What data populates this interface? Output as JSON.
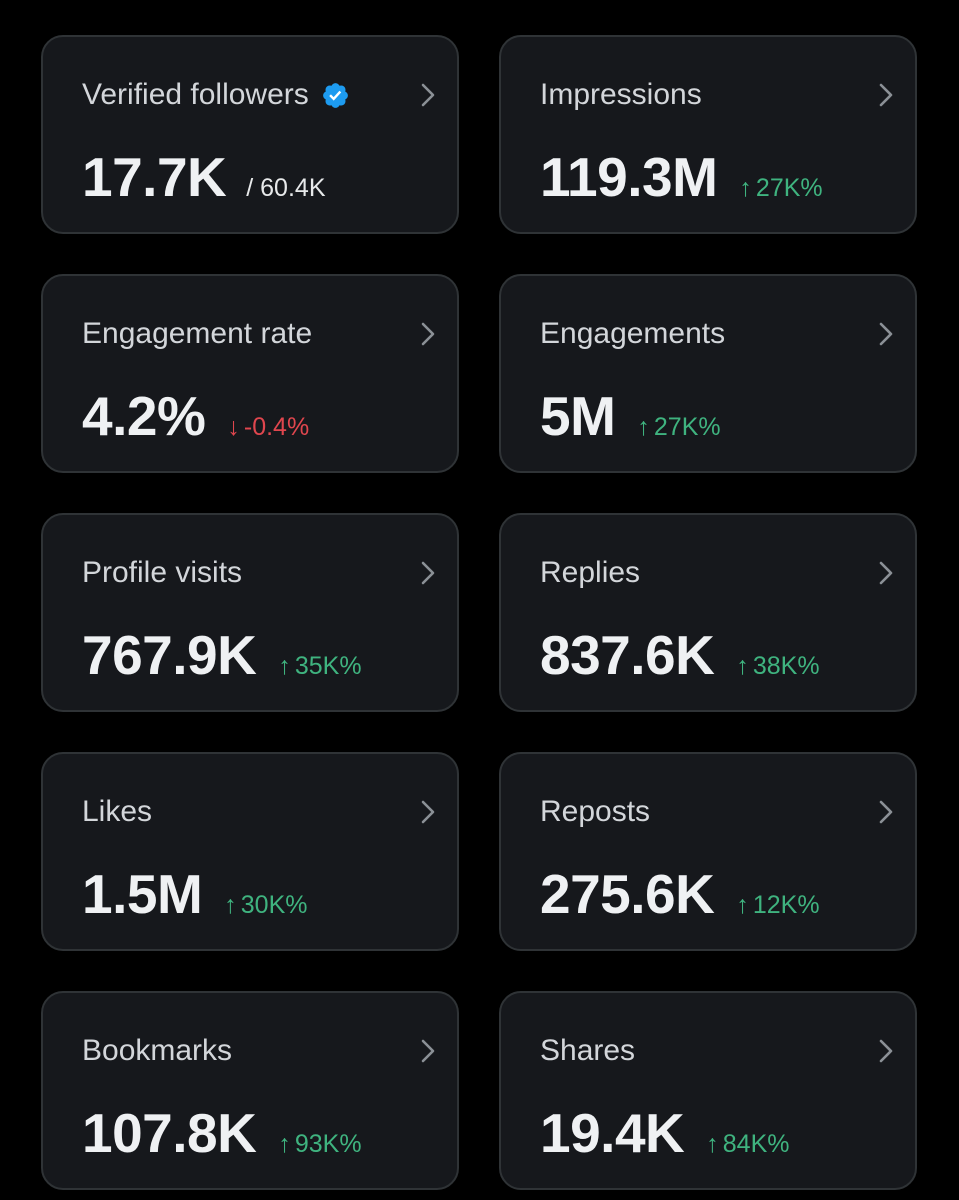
{
  "colors": {
    "background": "#000000",
    "card": "#16181c",
    "card_border": "#2f3336",
    "positive": "#3fb37f",
    "negative": "#e0464e",
    "verified": "#1d9bf0"
  },
  "cards": [
    {
      "title": "Verified followers",
      "value": "17.7K",
      "sub": "/ 60.4K"
    },
    {
      "title": "Impressions",
      "value": "119.3M",
      "arrow": "↑",
      "change": "27K%"
    },
    {
      "title": "Engagement rate",
      "value": "4.2%",
      "arrow": "↓",
      "change": "-0.4%"
    },
    {
      "title": "Engagements",
      "value": "5M",
      "arrow": "↑",
      "change": "27K%"
    },
    {
      "title": "Profile visits",
      "value": "767.9K",
      "arrow": "↑",
      "change": "35K%"
    },
    {
      "title": "Replies",
      "value": "837.6K",
      "arrow": "↑",
      "change": "38K%"
    },
    {
      "title": "Likes",
      "value": "1.5M",
      "arrow": "↑",
      "change": "30K%"
    },
    {
      "title": "Reposts",
      "value": "275.6K",
      "arrow": "↑",
      "change": "12K%"
    },
    {
      "title": "Bookmarks",
      "value": "107.8K",
      "arrow": "↑",
      "change": "93K%"
    },
    {
      "title": "Shares",
      "value": "19.4K",
      "arrow": "↑",
      "change": "84K%"
    }
  ]
}
